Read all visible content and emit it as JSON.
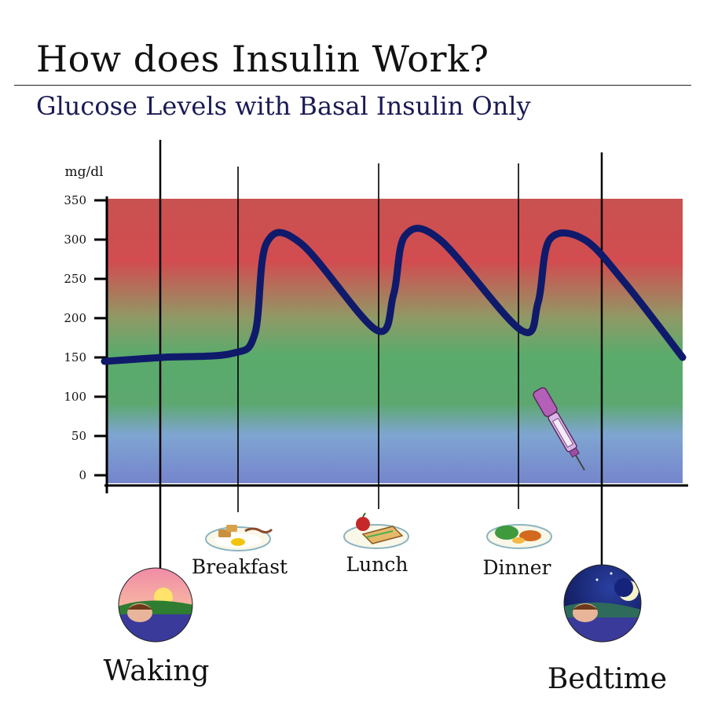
{
  "header": {
    "title": "How does Insulin Work?",
    "subtitle": "Glucose Levels with Basal Insulin Only"
  },
  "chart_data": {
    "type": "line",
    "title": "How does Insulin Work?",
    "subtitle": "Glucose Levels with Basal Insulin Only",
    "ylabel": "mg/dl",
    "xlabel": "",
    "ylim": [
      0,
      350
    ],
    "yticks": [
      0,
      50,
      100,
      150,
      200,
      250,
      300,
      350
    ],
    "background_bands": [
      {
        "range": [
          0,
          80
        ],
        "color": "#7b8fd0"
      },
      {
        "range": [
          80,
          180
        ],
        "color": "#5aaa6b"
      },
      {
        "range": [
          180,
          350
        ],
        "color": "#cf4f53"
      }
    ],
    "series": [
      {
        "color": "#0f1a6b",
        "x": [
          0,
          0.1,
          0.22,
          0.26,
          0.28,
          0.34,
          0.47,
          0.5,
          0.52,
          0.58,
          0.72,
          0.75,
          0.77,
          0.83,
          0.9,
          1.0
        ],
        "values": [
          145,
          150,
          155,
          180,
          295,
          295,
          185,
          230,
          305,
          300,
          185,
          220,
          300,
          300,
          245,
          150
        ]
      }
    ],
    "events": [
      {
        "label": "Waking",
        "x": 0.1
      },
      {
        "label": "Breakfast",
        "x": 0.23
      },
      {
        "label": "Lunch",
        "x": 0.48
      },
      {
        "label": "Dinner",
        "x": 0.72
      },
      {
        "label": "Bedtime",
        "x": 0.87
      }
    ],
    "insulin_pen_icon": "insulin-pen-icon"
  }
}
